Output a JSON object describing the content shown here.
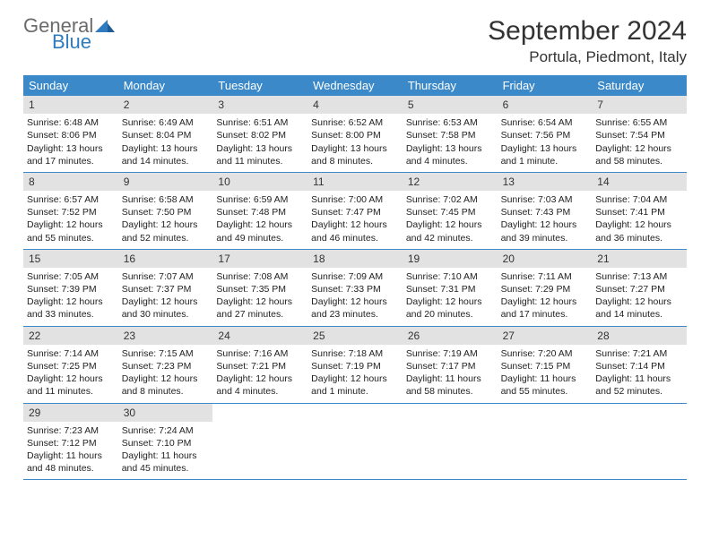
{
  "brand": {
    "word1": "General",
    "word2": "Blue"
  },
  "title": "September 2024",
  "location": "Portula, Piedmont, Italy",
  "colors": {
    "header_bg": "#3b89c9",
    "header_text": "#ffffff",
    "daynum_bg": "#e2e2e2",
    "rule": "#3b89c9",
    "logo_gray": "#6b6b6b",
    "logo_blue": "#2f7bbf",
    "body_text": "#222222"
  },
  "weekdays": [
    "Sunday",
    "Monday",
    "Tuesday",
    "Wednesday",
    "Thursday",
    "Friday",
    "Saturday"
  ],
  "weeks": [
    [
      {
        "n": "1",
        "sr": "6:48 AM",
        "ss": "8:06 PM",
        "dl": "13 hours and 17 minutes."
      },
      {
        "n": "2",
        "sr": "6:49 AM",
        "ss": "8:04 PM",
        "dl": "13 hours and 14 minutes."
      },
      {
        "n": "3",
        "sr": "6:51 AM",
        "ss": "8:02 PM",
        "dl": "13 hours and 11 minutes."
      },
      {
        "n": "4",
        "sr": "6:52 AM",
        "ss": "8:00 PM",
        "dl": "13 hours and 8 minutes."
      },
      {
        "n": "5",
        "sr": "6:53 AM",
        "ss": "7:58 PM",
        "dl": "13 hours and 4 minutes."
      },
      {
        "n": "6",
        "sr": "6:54 AM",
        "ss": "7:56 PM",
        "dl": "13 hours and 1 minute."
      },
      {
        "n": "7",
        "sr": "6:55 AM",
        "ss": "7:54 PM",
        "dl": "12 hours and 58 minutes."
      }
    ],
    [
      {
        "n": "8",
        "sr": "6:57 AM",
        "ss": "7:52 PM",
        "dl": "12 hours and 55 minutes."
      },
      {
        "n": "9",
        "sr": "6:58 AM",
        "ss": "7:50 PM",
        "dl": "12 hours and 52 minutes."
      },
      {
        "n": "10",
        "sr": "6:59 AM",
        "ss": "7:48 PM",
        "dl": "12 hours and 49 minutes."
      },
      {
        "n": "11",
        "sr": "7:00 AM",
        "ss": "7:47 PM",
        "dl": "12 hours and 46 minutes."
      },
      {
        "n": "12",
        "sr": "7:02 AM",
        "ss": "7:45 PM",
        "dl": "12 hours and 42 minutes."
      },
      {
        "n": "13",
        "sr": "7:03 AM",
        "ss": "7:43 PM",
        "dl": "12 hours and 39 minutes."
      },
      {
        "n": "14",
        "sr": "7:04 AM",
        "ss": "7:41 PM",
        "dl": "12 hours and 36 minutes."
      }
    ],
    [
      {
        "n": "15",
        "sr": "7:05 AM",
        "ss": "7:39 PM",
        "dl": "12 hours and 33 minutes."
      },
      {
        "n": "16",
        "sr": "7:07 AM",
        "ss": "7:37 PM",
        "dl": "12 hours and 30 minutes."
      },
      {
        "n": "17",
        "sr": "7:08 AM",
        "ss": "7:35 PM",
        "dl": "12 hours and 27 minutes."
      },
      {
        "n": "18",
        "sr": "7:09 AM",
        "ss": "7:33 PM",
        "dl": "12 hours and 23 minutes."
      },
      {
        "n": "19",
        "sr": "7:10 AM",
        "ss": "7:31 PM",
        "dl": "12 hours and 20 minutes."
      },
      {
        "n": "20",
        "sr": "7:11 AM",
        "ss": "7:29 PM",
        "dl": "12 hours and 17 minutes."
      },
      {
        "n": "21",
        "sr": "7:13 AM",
        "ss": "7:27 PM",
        "dl": "12 hours and 14 minutes."
      }
    ],
    [
      {
        "n": "22",
        "sr": "7:14 AM",
        "ss": "7:25 PM",
        "dl": "12 hours and 11 minutes."
      },
      {
        "n": "23",
        "sr": "7:15 AM",
        "ss": "7:23 PM",
        "dl": "12 hours and 8 minutes."
      },
      {
        "n": "24",
        "sr": "7:16 AM",
        "ss": "7:21 PM",
        "dl": "12 hours and 4 minutes."
      },
      {
        "n": "25",
        "sr": "7:18 AM",
        "ss": "7:19 PM",
        "dl": "12 hours and 1 minute."
      },
      {
        "n": "26",
        "sr": "7:19 AM",
        "ss": "7:17 PM",
        "dl": "11 hours and 58 minutes."
      },
      {
        "n": "27",
        "sr": "7:20 AM",
        "ss": "7:15 PM",
        "dl": "11 hours and 55 minutes."
      },
      {
        "n": "28",
        "sr": "7:21 AM",
        "ss": "7:14 PM",
        "dl": "11 hours and 52 minutes."
      }
    ],
    [
      {
        "n": "29",
        "sr": "7:23 AM",
        "ss": "7:12 PM",
        "dl": "11 hours and 48 minutes."
      },
      {
        "n": "30",
        "sr": "7:24 AM",
        "ss": "7:10 PM",
        "dl": "11 hours and 45 minutes."
      },
      null,
      null,
      null,
      null,
      null
    ]
  ],
  "labels": {
    "sunrise": "Sunrise:",
    "sunset": "Sunset:",
    "daylight": "Daylight:"
  }
}
